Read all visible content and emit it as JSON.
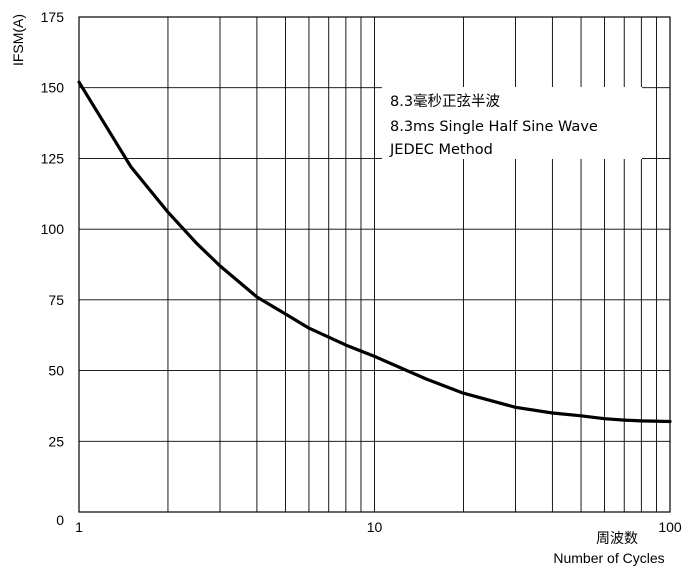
{
  "chart_data": {
    "type": "line",
    "xscale": "log",
    "xlim": [
      1,
      100
    ],
    "ylim": [
      0,
      175
    ],
    "x_ticks": [
      1,
      10,
      100
    ],
    "x_tick_labels": [
      "1",
      "10",
      "100"
    ],
    "y_ticks": [
      0,
      25,
      50,
      75,
      100,
      125,
      150,
      175
    ],
    "y_tick_labels": [
      "0",
      "25",
      "50",
      "75",
      "100",
      "125",
      "150",
      "175"
    ],
    "ylabel": "IFSM(A)",
    "xlabel_cn": "周波数",
    "xlabel": "Number of Cycles",
    "annotation_lines": [
      "8.3毫秒正弦半波",
      "8.3ms Single Half Sine Wave",
      "JEDEC Method"
    ],
    "grid": true,
    "line_color": "#000000",
    "series": [
      {
        "x": [
          1,
          1.5,
          2,
          2.5,
          3,
          4,
          5,
          6,
          8,
          10,
          15,
          20,
          30,
          40,
          50,
          60,
          70,
          80,
          100
        ],
        "y": [
          152,
          122,
          106,
          95,
          87,
          76,
          70,
          65,
          59,
          55,
          47,
          42,
          37,
          35,
          34,
          33,
          32.5,
          32.2,
          32
        ]
      }
    ]
  }
}
